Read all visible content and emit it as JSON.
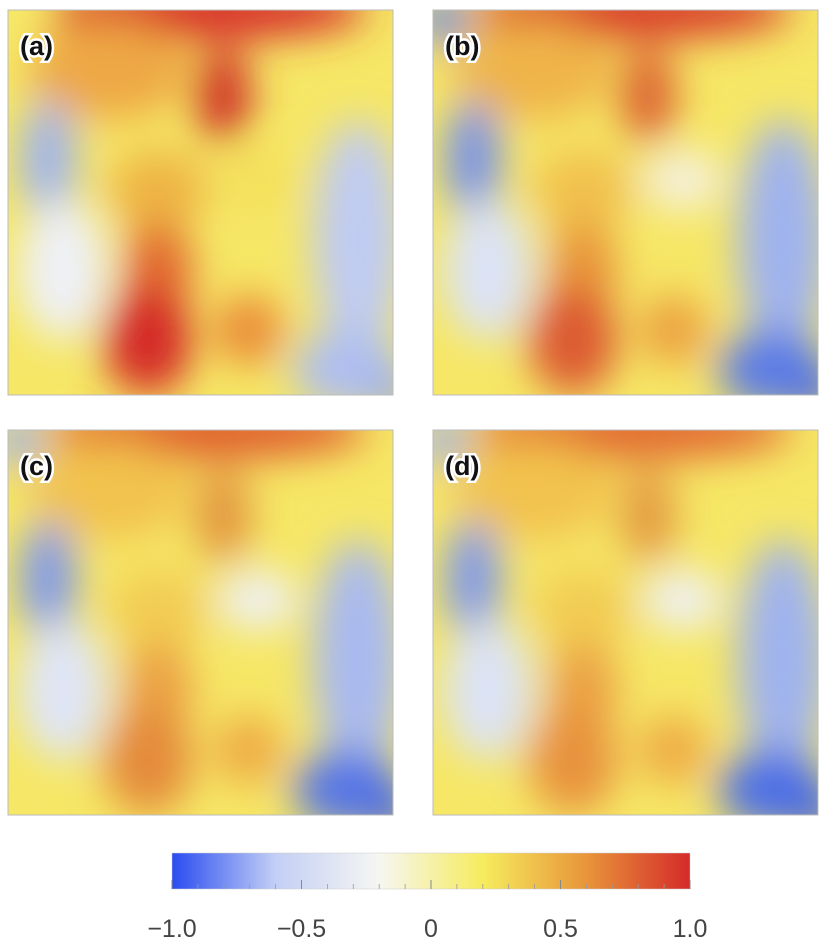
{
  "panels": [
    {
      "label": "(a)"
    },
    {
      "label": "(b)"
    },
    {
      "label": "(c)"
    },
    {
      "label": "(d)"
    }
  ],
  "colorbar": {
    "lim": [
      -1,
      1
    ],
    "ticks": [
      {
        "value": -1,
        "label": "−1.0"
      },
      {
        "value": -0.5,
        "label": "−0.5"
      },
      0,
      0.5,
      {
        "value": 1,
        "label": "1.0"
      }
    ],
    "minor_ticks": [
      -0.9,
      -0.8,
      -0.7,
      -0.6,
      -0.4,
      -0.3,
      -0.2,
      -0.1,
      0.1,
      0.2,
      0.3,
      0.4,
      0.6,
      0.7,
      0.8,
      0.9
    ],
    "colors": [
      "#2a4cf0",
      "#c3cff5",
      "#f6f6f2",
      "#f6ec5e",
      "#e8953a",
      "#d52a2a"
    ]
  }
}
